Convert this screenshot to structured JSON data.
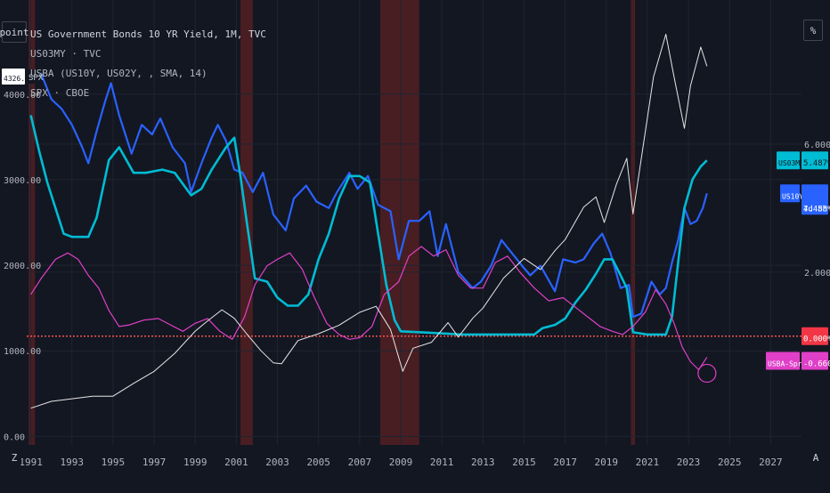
{
  "toolbar": {
    "left_button": "point",
    "right_button": "%",
    "bottom_left": "Z",
    "bottom_right": "A"
  },
  "legend": [
    "US Government Bonds 10 YR Yield, 1M, TVC",
    "US03MY · TVC",
    "USBA (US10Y, US02Y, , SMA, 14)",
    "SPX · CBOE"
  ],
  "badges": {
    "left_price": "4326.04",
    "left_symbol": "SPX",
    "us03my_label": "US03MY",
    "us03my_value": "5.487%",
    "us10y_label": "US10Y",
    "us10y_value": "4.458%",
    "us10y_sub": "7d 8h",
    "zero_value": "0.000%",
    "spread_label": "USBA-Spread",
    "spread_value": "-0.660%"
  },
  "colors": {
    "background": "#131722",
    "grid": "#1f2430",
    "us10y": "#2962ff",
    "us03my": "#00bcd4",
    "spread": "#e040c8",
    "spx": "#e6e6e6",
    "recession": "#5b2124",
    "zero_line": "#ef5350"
  },
  "chart_data": {
    "type": "line",
    "title": "US Government Bonds 10 YR Yield, 1M, TVC",
    "x_ticks": [
      "1991",
      "1993",
      "1995",
      "1997",
      "1999",
      "2001",
      "2003",
      "2005",
      "2007",
      "2009",
      "2011",
      "2013",
      "2015",
      "2017",
      "2019",
      "2021",
      "2023",
      "2025",
      "2027"
    ],
    "xlim": [
      1990.8,
      2028.5
    ],
    "left_axis": {
      "ticks": [
        "0.00",
        "1000.00",
        "2000.00",
        "3000.00",
        "4000.00"
      ],
      "ylim": [
        -100,
        5100
      ]
    },
    "right_axis": {
      "ticks": [
        "2.000%",
        "6.000%"
      ],
      "ylim": [
        -3.4,
        10.5
      ]
    },
    "recession_bands": [
      [
        1990.9,
        1991.2
      ],
      [
        2001.2,
        2001.8
      ],
      [
        2008.0,
        2009.9
      ],
      [
        2020.2,
        2020.4
      ]
    ],
    "zero_line": 0,
    "series": [
      {
        "name": "US10Y",
        "axis": "right",
        "color": "#2962ff",
        "width": 2.2,
        "points": [
          [
            1991.0,
            8.1
          ],
          [
            1991.5,
            8.2
          ],
          [
            1992.0,
            7.4
          ],
          [
            1992.5,
            7.1
          ],
          [
            1993.0,
            6.6
          ],
          [
            1993.5,
            5.9
          ],
          [
            1993.8,
            5.4
          ],
          [
            1994.2,
            6.4
          ],
          [
            1994.6,
            7.3
          ],
          [
            1994.9,
            7.9
          ],
          [
            1995.3,
            6.9
          ],
          [
            1995.9,
            5.7
          ],
          [
            1996.4,
            6.6
          ],
          [
            1996.9,
            6.3
          ],
          [
            1997.3,
            6.8
          ],
          [
            1997.9,
            5.9
          ],
          [
            1998.5,
            5.4
          ],
          [
            1998.8,
            4.5
          ],
          [
            1999.3,
            5.4
          ],
          [
            1999.8,
            6.2
          ],
          [
            2000.1,
            6.6
          ],
          [
            2000.5,
            6.1
          ],
          [
            2000.9,
            5.2
          ],
          [
            2001.3,
            5.1
          ],
          [
            2001.8,
            4.5
          ],
          [
            2002.3,
            5.1
          ],
          [
            2002.8,
            3.8
          ],
          [
            2003.4,
            3.3
          ],
          [
            2003.8,
            4.3
          ],
          [
            2004.4,
            4.7
          ],
          [
            2004.9,
            4.2
          ],
          [
            2005.5,
            4.0
          ],
          [
            2005.9,
            4.5
          ],
          [
            2006.5,
            5.1
          ],
          [
            2006.9,
            4.6
          ],
          [
            2007.4,
            5.0
          ],
          [
            2007.9,
            4.1
          ],
          [
            2008.5,
            3.9
          ],
          [
            2008.9,
            2.4
          ],
          [
            2009.4,
            3.6
          ],
          [
            2009.9,
            3.6
          ],
          [
            2010.4,
            3.9
          ],
          [
            2010.8,
            2.5
          ],
          [
            2011.2,
            3.5
          ],
          [
            2011.8,
            2.0
          ],
          [
            2012.5,
            1.5
          ],
          [
            2012.9,
            1.7
          ],
          [
            2013.4,
            2.2
          ],
          [
            2013.9,
            3.0
          ],
          [
            2014.4,
            2.6
          ],
          [
            2014.9,
            2.2
          ],
          [
            2015.3,
            1.9
          ],
          [
            2015.8,
            2.2
          ],
          [
            2016.5,
            1.4
          ],
          [
            2016.9,
            2.4
          ],
          [
            2017.5,
            2.3
          ],
          [
            2017.9,
            2.4
          ],
          [
            2018.4,
            2.9
          ],
          [
            2018.8,
            3.2
          ],
          [
            2019.2,
            2.6
          ],
          [
            2019.7,
            1.5
          ],
          [
            2020.1,
            1.6
          ],
          [
            2020.3,
            0.6
          ],
          [
            2020.7,
            0.7
          ],
          [
            2021.2,
            1.7
          ],
          [
            2021.6,
            1.3
          ],
          [
            2021.9,
            1.5
          ],
          [
            2022.2,
            2.3
          ],
          [
            2022.5,
            3.0
          ],
          [
            2022.8,
            4.0
          ],
          [
            2023.1,
            3.5
          ],
          [
            2023.4,
            3.6
          ],
          [
            2023.7,
            4.0
          ],
          [
            2023.9,
            4.46
          ]
        ]
      },
      {
        "name": "US03MY",
        "axis": "right",
        "color": "#00bcd4",
        "width": 2.6,
        "points": [
          [
            1991.0,
            6.9
          ],
          [
            1991.4,
            5.8
          ],
          [
            1991.8,
            4.8
          ],
          [
            1992.2,
            4.0
          ],
          [
            1992.6,
            3.2
          ],
          [
            1993.0,
            3.1
          ],
          [
            1993.8,
            3.1
          ],
          [
            1994.2,
            3.7
          ],
          [
            1994.8,
            5.5
          ],
          [
            1995.3,
            5.9
          ],
          [
            1996.0,
            5.1
          ],
          [
            1996.6,
            5.1
          ],
          [
            1997.4,
            5.2
          ],
          [
            1998.0,
            5.1
          ],
          [
            1998.8,
            4.4
          ],
          [
            1999.3,
            4.6
          ],
          [
            1999.8,
            5.2
          ],
          [
            2000.5,
            5.9
          ],
          [
            2000.9,
            6.2
          ],
          [
            2001.2,
            5.0
          ],
          [
            2001.5,
            3.6
          ],
          [
            2001.9,
            1.8
          ],
          [
            2002.5,
            1.7
          ],
          [
            2003.0,
            1.2
          ],
          [
            2003.5,
            0.95
          ],
          [
            2004.0,
            0.95
          ],
          [
            2004.5,
            1.3
          ],
          [
            2005.0,
            2.4
          ],
          [
            2005.5,
            3.2
          ],
          [
            2006.0,
            4.3
          ],
          [
            2006.5,
            5.0
          ],
          [
            2007.0,
            5.0
          ],
          [
            2007.5,
            4.8
          ],
          [
            2007.9,
            3.2
          ],
          [
            2008.3,
            1.6
          ],
          [
            2008.7,
            0.5
          ],
          [
            2009.0,
            0.15
          ],
          [
            2010.0,
            0.12
          ],
          [
            2012.0,
            0.05
          ],
          [
            2014.0,
            0.05
          ],
          [
            2015.5,
            0.05
          ],
          [
            2015.9,
            0.25
          ],
          [
            2016.5,
            0.35
          ],
          [
            2017.0,
            0.55
          ],
          [
            2017.5,
            1.05
          ],
          [
            2018.0,
            1.45
          ],
          [
            2018.5,
            1.95
          ],
          [
            2018.9,
            2.4
          ],
          [
            2019.3,
            2.4
          ],
          [
            2019.7,
            1.9
          ],
          [
            2020.0,
            1.5
          ],
          [
            2020.3,
            0.12
          ],
          [
            2021.0,
            0.05
          ],
          [
            2021.9,
            0.05
          ],
          [
            2022.2,
            0.6
          ],
          [
            2022.5,
            2.3
          ],
          [
            2022.8,
            4.0
          ],
          [
            2023.2,
            4.9
          ],
          [
            2023.6,
            5.3
          ],
          [
            2023.9,
            5.49
          ]
        ]
      },
      {
        "name": "USBA-Spread",
        "axis": "right",
        "color": "#e040c8",
        "width": 1.2,
        "points": [
          [
            1991.0,
            1.3
          ],
          [
            1991.5,
            1.8
          ],
          [
            1992.2,
            2.4
          ],
          [
            1992.8,
            2.6
          ],
          [
            1993.3,
            2.4
          ],
          [
            1993.8,
            1.9
          ],
          [
            1994.3,
            1.5
          ],
          [
            1994.8,
            0.8
          ],
          [
            1995.3,
            0.3
          ],
          [
            1995.8,
            0.35
          ],
          [
            1996.5,
            0.5
          ],
          [
            1997.2,
            0.55
          ],
          [
            1997.8,
            0.35
          ],
          [
            1998.4,
            0.15
          ],
          [
            1999.0,
            0.4
          ],
          [
            1999.6,
            0.55
          ],
          [
            2000.2,
            0.15
          ],
          [
            2000.8,
            -0.1
          ],
          [
            2001.4,
            0.6
          ],
          [
            2001.9,
            1.6
          ],
          [
            2002.5,
            2.2
          ],
          [
            2003.0,
            2.4
          ],
          [
            2003.6,
            2.6
          ],
          [
            2004.2,
            2.1
          ],
          [
            2004.8,
            1.2
          ],
          [
            2005.4,
            0.4
          ],
          [
            2006.0,
            0.05
          ],
          [
            2006.5,
            -0.1
          ],
          [
            2007.0,
            -0.05
          ],
          [
            2007.6,
            0.3
          ],
          [
            2008.2,
            1.3
          ],
          [
            2008.9,
            1.7
          ],
          [
            2009.4,
            2.5
          ],
          [
            2010.0,
            2.8
          ],
          [
            2010.6,
            2.5
          ],
          [
            2011.2,
            2.7
          ],
          [
            2011.8,
            1.9
          ],
          [
            2012.4,
            1.5
          ],
          [
            2013.0,
            1.5
          ],
          [
            2013.6,
            2.3
          ],
          [
            2014.2,
            2.5
          ],
          [
            2014.8,
            2.0
          ],
          [
            2015.5,
            1.5
          ],
          [
            2016.2,
            1.1
          ],
          [
            2016.9,
            1.2
          ],
          [
            2017.5,
            0.9
          ],
          [
            2018.1,
            0.6
          ],
          [
            2018.7,
            0.3
          ],
          [
            2019.3,
            0.15
          ],
          [
            2019.8,
            0.05
          ],
          [
            2020.3,
            0.3
          ],
          [
            2020.9,
            0.75
          ],
          [
            2021.4,
            1.45
          ],
          [
            2021.9,
            1.0
          ],
          [
            2022.3,
            0.4
          ],
          [
            2022.7,
            -0.35
          ],
          [
            2023.1,
            -0.8
          ],
          [
            2023.5,
            -1.05
          ],
          [
            2023.9,
            -0.66
          ]
        ]
      },
      {
        "name": "SPX",
        "axis": "left",
        "color": "#e6e6e6",
        "width": 1.0,
        "points": [
          [
            1991.0,
            330
          ],
          [
            1992.0,
            410
          ],
          [
            1993.0,
            440
          ],
          [
            1994.0,
            470
          ],
          [
            1995.0,
            470
          ],
          [
            1996.0,
            620
          ],
          [
            1997.0,
            760
          ],
          [
            1998.0,
            970
          ],
          [
            1999.0,
            1230
          ],
          [
            1999.6,
            1350
          ],
          [
            2000.3,
            1480
          ],
          [
            2000.9,
            1380
          ],
          [
            2001.5,
            1200
          ],
          [
            2002.2,
            1000
          ],
          [
            2002.8,
            860
          ],
          [
            2003.2,
            850
          ],
          [
            2004.0,
            1120
          ],
          [
            2005.0,
            1200
          ],
          [
            2006.0,
            1300
          ],
          [
            2007.0,
            1450
          ],
          [
            2007.8,
            1520
          ],
          [
            2008.5,
            1250
          ],
          [
            2009.1,
            760
          ],
          [
            2009.6,
            1030
          ],
          [
            2010.5,
            1100
          ],
          [
            2011.3,
            1330
          ],
          [
            2011.8,
            1160
          ],
          [
            2012.5,
            1380
          ],
          [
            2013.0,
            1500
          ],
          [
            2014.0,
            1850
          ],
          [
            2015.0,
            2080
          ],
          [
            2015.8,
            1950
          ],
          [
            2016.5,
            2170
          ],
          [
            2017.0,
            2300
          ],
          [
            2017.9,
            2680
          ],
          [
            2018.5,
            2800
          ],
          [
            2018.9,
            2500
          ],
          [
            2019.5,
            2950
          ],
          [
            2020.0,
            3250
          ],
          [
            2020.3,
            2600
          ],
          [
            2020.8,
            3400
          ],
          [
            2021.3,
            4200
          ],
          [
            2021.9,
            4700
          ],
          [
            2022.3,
            4200
          ],
          [
            2022.8,
            3600
          ],
          [
            2023.1,
            4100
          ],
          [
            2023.6,
            4550
          ],
          [
            2023.9,
            4326
          ]
        ]
      }
    ]
  }
}
